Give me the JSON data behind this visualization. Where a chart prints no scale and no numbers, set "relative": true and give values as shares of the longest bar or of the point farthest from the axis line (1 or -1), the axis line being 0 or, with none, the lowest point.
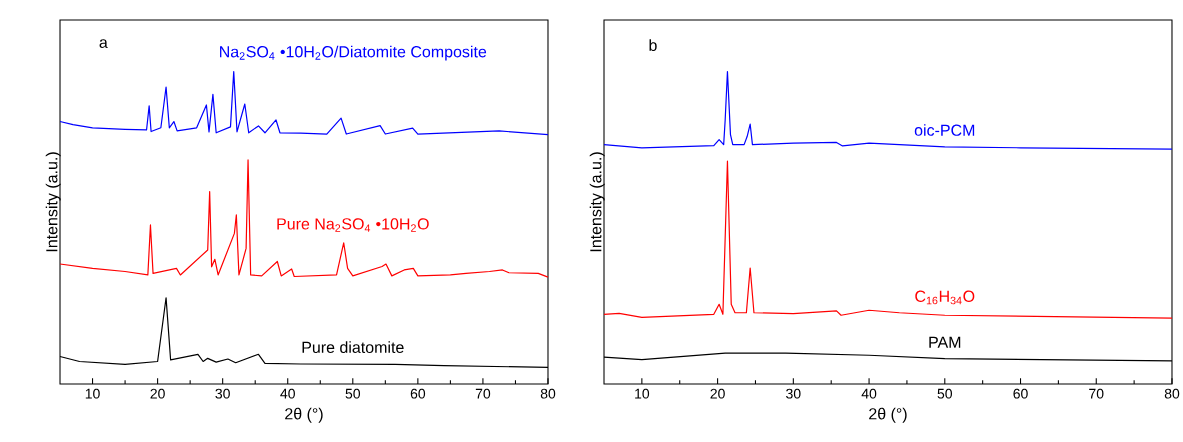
{
  "chart_data": [
    {
      "type": "line",
      "relative": true,
      "xlabel": "2θ (°)",
      "ylabel": "Intensity (a.u.)",
      "annotations": [
        "a"
      ],
      "xlim": [
        5,
        80
      ],
      "xticks": [
        10,
        20,
        30,
        40,
        50,
        60,
        70,
        80
      ],
      "series": [
        {
          "name": "Na$_{2}$SO$_{4}$ •10H$_{2}$O/Diatomite Composite",
          "color": "#0000ff",
          "x": [
            5,
            7,
            10,
            15,
            18.3,
            18.7,
            19,
            20.5,
            21.3,
            21.8,
            22.5,
            23,
            26,
            27.5,
            27.9,
            28.5,
            29,
            31.2,
            31.7,
            32.2,
            33.4,
            34,
            35.5,
            36.5,
            38.2,
            38.8,
            42,
            46,
            48.2,
            49,
            54.2,
            55,
            59.2,
            60,
            72.5,
            80
          ],
          "values": [
            0.84,
            0.83,
            0.82,
            0.815,
            0.813,
            0.89,
            0.808,
            0.82,
            0.95,
            0.82,
            0.84,
            0.81,
            0.82,
            0.893,
            0.807,
            0.927,
            0.804,
            0.823,
            1.0,
            0.807,
            0.896,
            0.804,
            0.826,
            0.804,
            0.845,
            0.804,
            0.803,
            0.8,
            0.851,
            0.8,
            0.827,
            0.8,
            0.819,
            0.8,
            0.81,
            0.798
          ]
        },
        {
          "name": "Pure Na$_{2}$SO$_{4}$ •10H$_{2}$O",
          "color": "#ff0000",
          "x": [
            5,
            10,
            15,
            18.5,
            18.9,
            19.3,
            22.9,
            23.5,
            27.7,
            28.0,
            28.3,
            28.8,
            29.3,
            31.8,
            32.1,
            32.5,
            33.6,
            33.9,
            34.3,
            36,
            38.4,
            39,
            40.6,
            41,
            47.5,
            48.6,
            49.2,
            50,
            54.5,
            55.1,
            56,
            57.9,
            59.3,
            60,
            65,
            67.4,
            71,
            73,
            74,
            78.5,
            80
          ],
          "values": [
            0.384,
            0.37,
            0.36,
            0.349,
            0.509,
            0.354,
            0.37,
            0.349,
            0.429,
            0.616,
            0.375,
            0.399,
            0.349,
            0.482,
            0.541,
            0.349,
            0.434,
            0.717,
            0.349,
            0.346,
            0.392,
            0.346,
            0.368,
            0.344,
            0.349,
            0.452,
            0.37,
            0.346,
            0.376,
            0.384,
            0.346,
            0.365,
            0.37,
            0.346,
            0.349,
            0.354,
            0.36,
            0.365,
            0.356,
            0.354,
            0.342
          ]
        },
        {
          "name": "Pure diatomite",
          "color": "#000000",
          "x": [
            5,
            8,
            15,
            20,
            21.3,
            22,
            26.2,
            27,
            27.7,
            29,
            30.8,
            32,
            35.5,
            36.5,
            42,
            56.5,
            64,
            80
          ],
          "values": [
            0.088,
            0.072,
            0.063,
            0.072,
            0.276,
            0.077,
            0.095,
            0.072,
            0.082,
            0.07,
            0.08,
            0.068,
            0.095,
            0.066,
            0.064,
            0.063,
            0.059,
            0.053
          ]
        }
      ]
    },
    {
      "type": "line",
      "relative": true,
      "xlabel": "2θ (°)",
      "ylabel": "Intensity (a.u.)",
      "annotations": [
        "b"
      ],
      "xlim": [
        5,
        80
      ],
      "xticks": [
        10,
        20,
        30,
        40,
        50,
        60,
        70,
        80
      ],
      "series": [
        {
          "name": "oic-PCM",
          "color": "#0000ff",
          "x": [
            5,
            10,
            19.5,
            20.2,
            20.8,
            21,
            21.3,
            21.7,
            22,
            23.5,
            23.9,
            24.3,
            24.6,
            30,
            35.7,
            36.5,
            40,
            44,
            50,
            60,
            80
          ],
          "values": [
            0.766,
            0.756,
            0.763,
            0.782,
            0.766,
            0.845,
            1.0,
            0.798,
            0.766,
            0.766,
            0.792,
            0.832,
            0.766,
            0.771,
            0.773,
            0.762,
            0.771,
            0.766,
            0.759,
            0.756,
            0.752
          ]
        },
        {
          "name": "C$_{16}$H$_{34}$O",
          "color": "#ff0000",
          "x": [
            5,
            7,
            10,
            19.5,
            20.2,
            20.7,
            21.3,
            21.8,
            22.3,
            23.8,
            24.3,
            24.8,
            30,
            35.7,
            36.3,
            40,
            44,
            50,
            80
          ],
          "values": [
            0.223,
            0.226,
            0.213,
            0.223,
            0.255,
            0.223,
            0.713,
            0.255,
            0.228,
            0.228,
            0.371,
            0.228,
            0.225,
            0.234,
            0.22,
            0.236,
            0.228,
            0.22,
            0.211
          ]
        },
        {
          "name": "PAM",
          "color": "#000000",
          "x": [
            5,
            10,
            21,
            29,
            40,
            50,
            80
          ],
          "values": [
            0.086,
            0.078,
            0.099,
            0.099,
            0.092,
            0.081,
            0.074
          ]
        }
      ]
    }
  ]
}
